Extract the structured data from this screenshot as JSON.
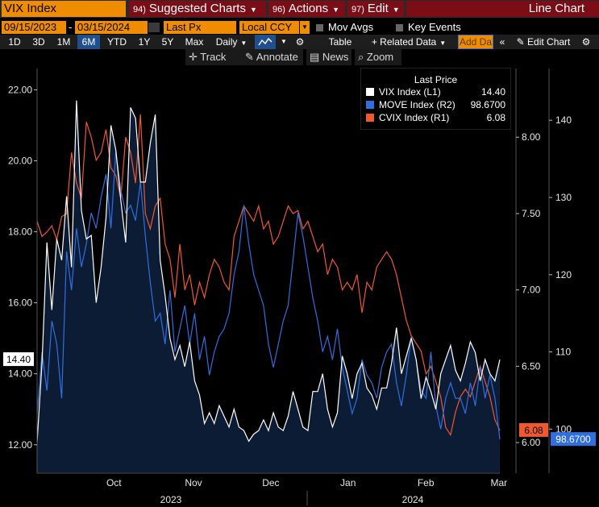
{
  "header": {
    "ticker": "VIX Index",
    "menus": [
      {
        "num": "94)",
        "label": "Suggested Charts"
      },
      {
        "num": "96)",
        "label": "Actions"
      },
      {
        "num": "97)",
        "label": "Edit"
      }
    ],
    "key_events_label": "Key Events",
    "chart_type": "Line Chart"
  },
  "controls": {
    "start_date": "09/15/2023",
    "end_date": "03/15/2024",
    "date_separator": "-",
    "price_field": "Last Px",
    "currency": "Local CCY",
    "mov_avgs_label": "Mov Avgs"
  },
  "toolbar": {
    "ranges": [
      "1D",
      "3D",
      "1M",
      "6M",
      "YTD",
      "1Y",
      "5Y",
      "Max"
    ],
    "active_range": "6M",
    "frequency": "Daily",
    "table_label": "Table",
    "related_data_label": "+ Related Data",
    "add_data_placeholder": "Add Da",
    "edit_chart_label": "Edit Chart",
    "colors": {
      "accent": "#f08c00",
      "menu": "#7a0d16",
      "active": "#1f4f8c"
    }
  },
  "tools": {
    "track": "Track",
    "annotate": "Annotate",
    "news": "News",
    "zoom": "Zoom"
  },
  "legend": {
    "title": "Last Price",
    "entries": [
      {
        "name": "VIX Index",
        "axis": "(L1)",
        "value": "14.40",
        "color": "#ffffff"
      },
      {
        "name": "MOVE Index",
        "axis": "(R2)",
        "value": "98.6700",
        "color": "#2f6fe0"
      },
      {
        "name": "CVIX Index",
        "axis": "(R1)",
        "value": "6.08",
        "color": "#f0582e"
      }
    ]
  },
  "chart_data": {
    "type": "line",
    "x_tick_labels": [
      "Oct",
      "Nov",
      "Dec",
      "Jan",
      "Feb",
      "Mar"
    ],
    "year_labels": [
      "2023",
      "2024"
    ],
    "left_axis": {
      "ylim": [
        11.2,
        22.6
      ],
      "ticks": [
        12,
        14,
        16,
        18,
        20,
        22
      ],
      "format": "2dec"
    },
    "right1_axis": {
      "ylim": [
        5.8,
        8.45
      ],
      "ticks": [
        6.0,
        6.5,
        7.0,
        7.5,
        8.0
      ],
      "format": "2dec"
    },
    "right2_axis": {
      "ylim": [
        94.3,
        146.7
      ],
      "ticks": [
        100,
        110,
        120,
        130,
        140
      ],
      "format": "int"
    },
    "last_labels": {
      "vix": "14.40",
      "cvix": "6.08",
      "move": "98.6700"
    },
    "series": [
      {
        "name": "VIX Index",
        "axis": "L1",
        "fill": true,
        "values": [
          12.07,
          14.3,
          17.7,
          15.8,
          17.8,
          17.2,
          19.0,
          17.0,
          21.7,
          18.6,
          17.8,
          17.9,
          16.0,
          17.0,
          18.4,
          21.0,
          20.3,
          18.9,
          17.7,
          21.5,
          21.2,
          19.4,
          19.4,
          20.5,
          21.3,
          17.2,
          16.2,
          15.0,
          14.4,
          14.8,
          14.2,
          14.9,
          13.8,
          13.4,
          12.6,
          12.9,
          12.6,
          13.1,
          12.8,
          12.5,
          13.0,
          12.5,
          12.4,
          12.1,
          12.3,
          12.4,
          12.7,
          12.4,
          12.9,
          12.5,
          12.4,
          12.8,
          13.5,
          13.0,
          12.5,
          12.4,
          13.5,
          13.5,
          14.0,
          13.0,
          12.5,
          12.9,
          14.5,
          14.0,
          13.3,
          14.0,
          14.3,
          13.6,
          13.4,
          13.0,
          13.6,
          13.6,
          14.3,
          15.3,
          14.0,
          14.5,
          15.0,
          14.4,
          13.3,
          13.9,
          13.5,
          13.0,
          14.0,
          14.4,
          14.8,
          14.1,
          13.8,
          14.3,
          14.9,
          14.6,
          13.8,
          14.4,
          14.0,
          13.8,
          14.4
        ]
      },
      {
        "name": "CVIX Index",
        "axis": "R1",
        "fill": false,
        "values": [
          7.45,
          7.35,
          7.38,
          7.42,
          7.33,
          7.48,
          7.5,
          7.9,
          7.7,
          7.6,
          8.1,
          8.0,
          7.85,
          7.9,
          8.05,
          7.8,
          7.75,
          7.6,
          8.0,
          7.9,
          7.7,
          8.15,
          7.5,
          7.4,
          7.55,
          7.6,
          7.3,
          7.2,
          6.95,
          7.3,
          7.0,
          7.1,
          6.9,
          7.05,
          6.95,
          7.1,
          7.2,
          7.15,
          7.05,
          7.0,
          7.35,
          7.45,
          7.55,
          7.5,
          7.45,
          7.55,
          7.4,
          7.45,
          7.3,
          7.35,
          7.45,
          7.55,
          7.5,
          7.52,
          7.4,
          7.45,
          7.35,
          7.25,
          7.3,
          7.1,
          7.2,
          7.15,
          7.0,
          7.05,
          7.0,
          7.1,
          6.85,
          7.05,
          7.0,
          7.15,
          7.2,
          7.25,
          7.2,
          7.1,
          6.95,
          6.8,
          6.7,
          6.65,
          6.6,
          6.45,
          6.5,
          6.4,
          6.3,
          6.1,
          6.05,
          6.2,
          6.3,
          6.35,
          6.3,
          6.4,
          6.5,
          6.4,
          6.3,
          6.15,
          6.08
        ]
      },
      {
        "name": "MOVE Index",
        "axis": "R2",
        "fill": false,
        "values": [
          102.0,
          110.0,
          105.0,
          114.0,
          111.0,
          104.0,
          123.0,
          118.0,
          126.0,
          121.0,
          124.0,
          128.0,
          126.0,
          130.0,
          133.0,
          126.0,
          136.0,
          131.0,
          128.0,
          129.0,
          127.0,
          132.0,
          125.0,
          119.0,
          114.0,
          115.0,
          111.0,
          118.0,
          110.0,
          113.0,
          116.0,
          111.0,
          115.0,
          109.0,
          112.0,
          107.0,
          110.0,
          112.0,
          113.0,
          115.0,
          120.0,
          123.0,
          129.0,
          124.0,
          120.0,
          118.0,
          116.0,
          111.0,
          108.0,
          111.0,
          114.0,
          116.0,
          122.0,
          128.0,
          125.0,
          121.0,
          117.0,
          114.0,
          110.0,
          112.0,
          109.0,
          113.0,
          108.0,
          105.0,
          102.0,
          104.0,
          109.0,
          107.0,
          106.0,
          104.0,
          108.0,
          110.0,
          111.0,
          106.0,
          103.0,
          107.0,
          112.0,
          109.0,
          105.0,
          104.0,
          110.0,
          103.0,
          100.0,
          104.0,
          106.0,
          104.0,
          104.0,
          102.0,
          106.0,
          103.0,
          108.0,
          104.0,
          107.0,
          104.0,
          98.67
        ]
      }
    ]
  }
}
